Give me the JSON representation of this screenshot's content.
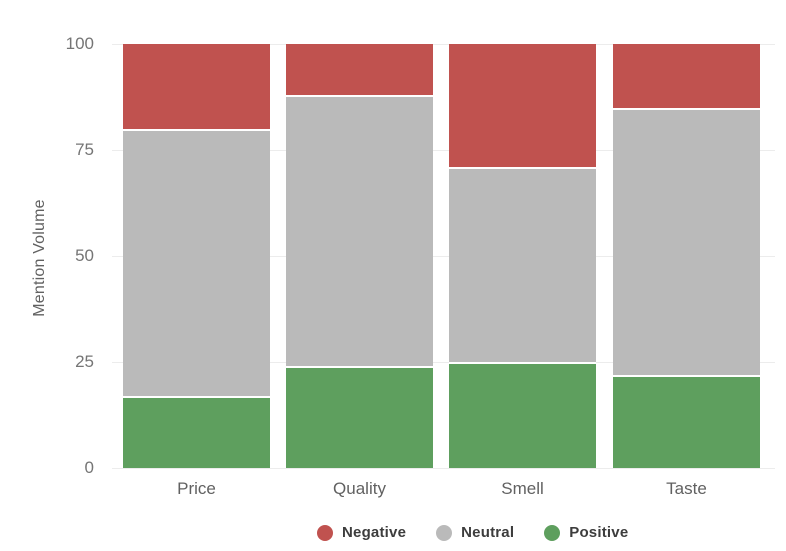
{
  "chart_data": {
    "type": "bar",
    "stacked": true,
    "title": "",
    "xlabel": "",
    "ylabel": "Mention Volume",
    "categories": [
      "Price",
      "Quality",
      "Smell",
      "Taste"
    ],
    "series": [
      {
        "name": "Negative",
        "color": "#c0524f",
        "values": [
          20,
          12,
          29,
          15
        ]
      },
      {
        "name": "Neutral",
        "color": "#bababa",
        "values": [
          63,
          64,
          46,
          63
        ]
      },
      {
        "name": "Positive",
        "color": "#5e9f5e",
        "values": [
          17,
          24,
          25,
          22
        ]
      }
    ],
    "stack_order_bottom_to_top": [
      "Positive",
      "Neutral",
      "Negative"
    ],
    "ylim": [
      0,
      100
    ],
    "y_ticks": [
      "0",
      "25",
      "50",
      "75",
      "100"
    ],
    "grid": "horizontal-faint",
    "legend_position": "bottom-center"
  },
  "legend": {
    "items": [
      {
        "label": "Negative",
        "color": "#c0524f"
      },
      {
        "label": "Neutral",
        "color": "#bababa"
      },
      {
        "label": "Positive",
        "color": "#5e9f5e"
      }
    ]
  },
  "colors": {
    "negative": "#c0524f",
    "neutral": "#bababa",
    "positive": "#5e9f5e",
    "tick_label": "#757575",
    "axis_title": "#616161",
    "category_label": "#616161",
    "legend_text": "#3d3d3d",
    "gridline": "#ececec",
    "background": "#ffffff"
  }
}
